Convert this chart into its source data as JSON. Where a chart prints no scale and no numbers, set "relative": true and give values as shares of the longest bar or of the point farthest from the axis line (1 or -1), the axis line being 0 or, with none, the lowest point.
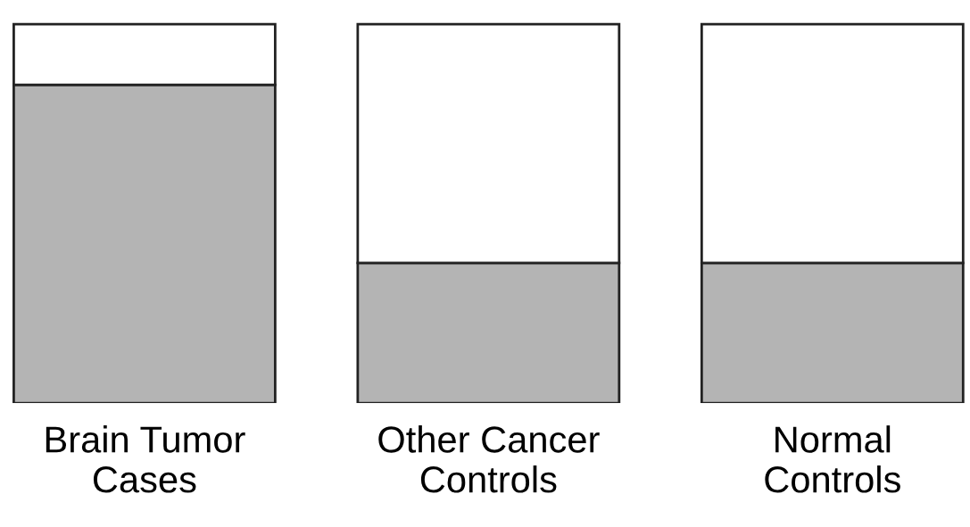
{
  "chart_data": {
    "type": "bar",
    "relative": true,
    "stacked": true,
    "categories": [
      "Brain Tumor\nCases",
      "Other Cancer\nControls",
      "Normal\nControls"
    ],
    "series": [
      {
        "color": "#b4b4b4",
        "values": [
          0.84,
          0.37,
          0.37
        ]
      },
      {
        "color": "#ffffff",
        "values": [
          0.16,
          0.63,
          0.63
        ]
      }
    ],
    "grid": false,
    "legend": false
  }
}
